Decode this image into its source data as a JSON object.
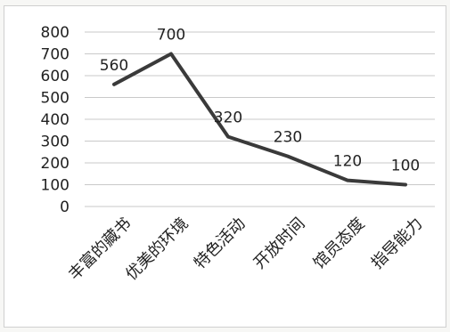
{
  "chart_data": {
    "type": "line",
    "title": "",
    "xlabel": "",
    "ylabel": "",
    "categories": [
      "丰富的藏书",
      "优美的环境",
      "特色活动",
      "开放时间",
      "馆员态度",
      "指导能力"
    ],
    "series": [
      {
        "values": [
          560,
          700,
          320,
          230,
          120,
          100
        ],
        "color": "#3a3a3a"
      }
    ],
    "ylim": [
      0,
      800
    ],
    "yticks": [
      0,
      100,
      200,
      300,
      400,
      500,
      600,
      700,
      800
    ],
    "grid": true,
    "data_labels": true
  }
}
